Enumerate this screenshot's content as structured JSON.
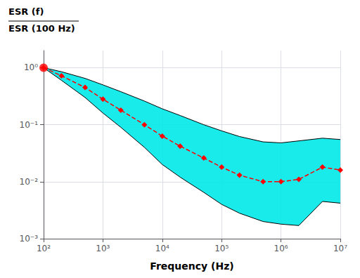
{
  "chart_data": {
    "type": "line",
    "xlabel": "Frequency (Hz)",
    "ylabel": [
      "ESR (f)",
      "ESR (100 Hz)"
    ],
    "log": true,
    "grid": true,
    "x": [
      100,
      200,
      500,
      1000,
      2000,
      5000,
      10000,
      20000,
      50000,
      100000,
      200000,
      500000,
      1000000,
      2000000,
      5000000,
      10000000
    ],
    "xlim": [
      100,
      10000000
    ],
    "ylim": [
      0.001,
      2.0
    ],
    "xticks": [
      {
        "value": 100,
        "label": "10²"
      },
      {
        "value": 1000,
        "label": "10³"
      },
      {
        "value": 10000,
        "label": "10⁴"
      },
      {
        "value": 100000,
        "label": "10⁵"
      },
      {
        "value": 1000000,
        "label": "10⁶"
      },
      {
        "value": 10000000,
        "label": "10⁷"
      }
    ],
    "yticks": [
      {
        "value": 0.001,
        "label": "10⁻³"
      },
      {
        "value": 0.01,
        "label": "10⁻²"
      },
      {
        "value": 0.1,
        "label": "10⁻¹"
      },
      {
        "value": 1.0,
        "label": "10⁰"
      }
    ],
    "series": [
      {
        "type": "band",
        "color": "#00e8e8",
        "lower": [
          1.0,
          0.6,
          0.3,
          0.16,
          0.09,
          0.04,
          0.02,
          0.012,
          0.0065,
          0.004,
          0.0028,
          0.002,
          0.0018,
          0.0017,
          0.0045,
          0.0042
        ],
        "upper": [
          1.0,
          0.85,
          0.65,
          0.5,
          0.38,
          0.26,
          0.19,
          0.145,
          0.1,
          0.078,
          0.062,
          0.05,
          0.048,
          0.052,
          0.058,
          0.055
        ]
      },
      {
        "type": "line",
        "color": "#000000",
        "values": [
          1.0,
          0.85,
          0.65,
          0.5,
          0.38,
          0.26,
          0.19,
          0.145,
          0.1,
          0.078,
          0.062,
          0.05,
          0.048,
          0.052,
          0.058,
          0.055
        ]
      },
      {
        "type": "line",
        "color": "#000000",
        "values": [
          1.0,
          0.6,
          0.3,
          0.16,
          0.09,
          0.04,
          0.02,
          0.012,
          0.0065,
          0.004,
          0.0028,
          0.002,
          0.0018,
          0.0017,
          0.0045,
          0.0042
        ]
      },
      {
        "type": "line",
        "color": "#ff0000",
        "line_style": "dashed",
        "marker": "diamond",
        "values": [
          1.0,
          0.72,
          0.45,
          0.28,
          0.18,
          0.1,
          0.063,
          0.042,
          0.026,
          0.018,
          0.013,
          0.01,
          0.01,
          0.011,
          0.018,
          0.016
        ]
      },
      {
        "type": "scatter",
        "color": "#ff0000",
        "marker": "circle",
        "x": [
          100
        ],
        "values": [
          1.0
        ]
      }
    ]
  }
}
